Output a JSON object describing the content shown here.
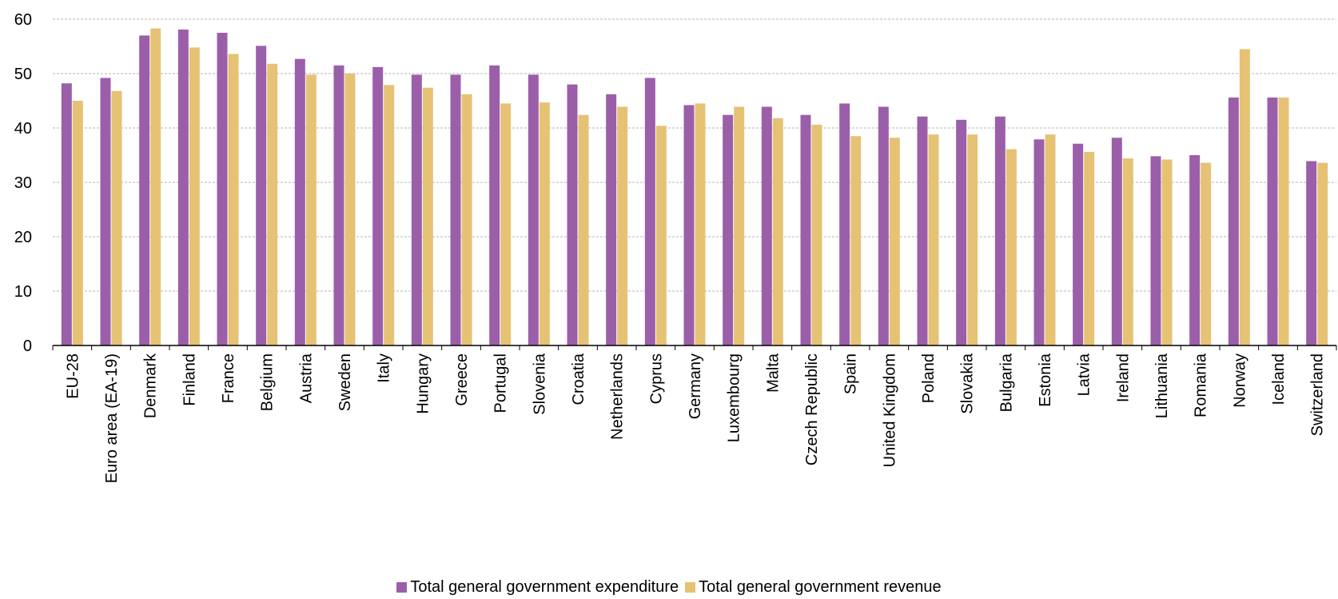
{
  "chart_data": {
    "type": "bar",
    "title": "",
    "xlabel": "",
    "ylabel": "",
    "ylim": [
      0,
      60
    ],
    "yticks": [
      "0",
      "10",
      "20",
      "30",
      "40",
      "50",
      "60"
    ],
    "grid": true,
    "legend_position": "bottom-center",
    "categories": [
      "EU-28",
      "Euro area (EA-19)",
      "Denmark",
      "Finland",
      "France",
      "Belgium",
      "Austria",
      "Sweden",
      "Italy",
      "Hungary",
      "Greece",
      "Portugal",
      "Slovenia",
      "Croatia",
      "Netherlands",
      "Cyprus",
      "Germany",
      "Luxembourg",
      "Malta",
      "Czech Republic",
      "Spain",
      "United Kingdom",
      "Poland",
      "Slovakia",
      "Bulgaria",
      "Estonia",
      "Latvia",
      "Ireland",
      "Lithuania",
      "Romania",
      "Norway",
      "Iceland",
      "Switzerland"
    ],
    "series": [
      {
        "name": "Total general government expenditure",
        "color": "#9B5FAA",
        "values": [
          48.2,
          49.2,
          57.0,
          58.1,
          57.5,
          55.1,
          52.7,
          51.5,
          51.2,
          49.8,
          49.8,
          51.5,
          49.8,
          48.0,
          46.2,
          49.2,
          44.2,
          42.4,
          43.9,
          42.4,
          44.5,
          43.9,
          42.1,
          41.5,
          42.1,
          37.9,
          37.1,
          38.2,
          34.8,
          35.0,
          45.6,
          45.6,
          33.9
        ]
      },
      {
        "name": "Total general government revenue",
        "color": "#E6C275",
        "values": [
          45.0,
          46.8,
          58.3,
          54.8,
          53.6,
          51.8,
          49.8,
          50.0,
          47.9,
          47.4,
          46.2,
          44.5,
          44.7,
          42.4,
          43.9,
          40.4,
          44.5,
          43.9,
          41.8,
          40.6,
          38.5,
          38.2,
          38.8,
          38.8,
          36.1,
          38.8,
          35.6,
          34.4,
          34.2,
          33.6,
          54.5,
          45.6,
          33.6
        ]
      }
    ]
  }
}
